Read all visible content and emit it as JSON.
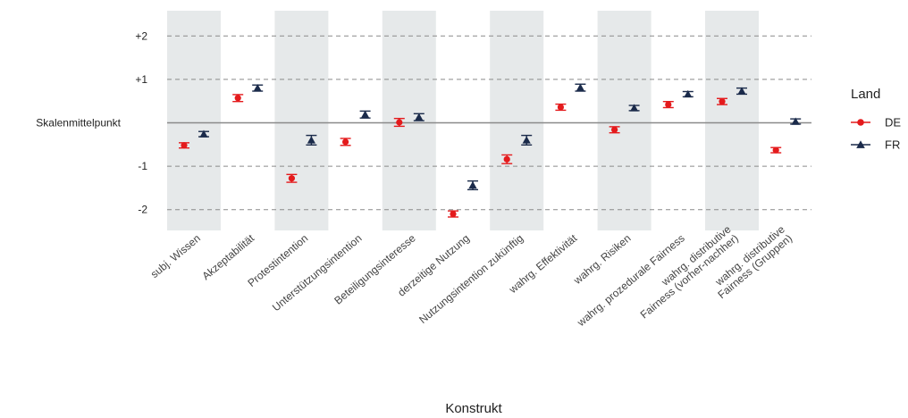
{
  "chart_data": {
    "type": "scatter",
    "xlabel": "Konstrukt",
    "ylabel": "",
    "ylim": [
      -2.5,
      2.0
    ],
    "y_ticks": [
      {
        "value": 2,
        "label": "+2"
      },
      {
        "value": 1,
        "label": "+1"
      },
      {
        "value": 0,
        "label": "Skalenmittelpunkt"
      },
      {
        "value": -1,
        "label": "-1"
      },
      {
        "value": -2,
        "label": "-2"
      }
    ],
    "categories": [
      [
        "subj. Wissen"
      ],
      [
        "Akzeptabilität"
      ],
      [
        "Protestintention"
      ],
      [
        "Unterstützungsintention"
      ],
      [
        "Beteiligungsinteresse"
      ],
      [
        "derzeitige Nutzung"
      ],
      [
        "Nutzungsintention zukünftig"
      ],
      [
        "wahrg. Effektivität"
      ],
      [
        "wahrg. Risiken"
      ],
      [
        "wahrg. prozedurale Fairness"
      ],
      [
        "wahrg. distributive",
        "Fairness (vorher-nachher)"
      ],
      [
        "wahrg. distributive",
        "Fairness (Gruppen)"
      ]
    ],
    "shaded_bands": [
      0,
      2,
      4,
      6,
      8,
      10
    ],
    "legend": {
      "title": "Land",
      "position": "right"
    },
    "series": [
      {
        "name": "DE",
        "color": "#e41a1c",
        "marker": "circle",
        "values": [
          -0.52,
          0.57,
          -1.28,
          -0.44,
          0.01,
          -2.1,
          -0.84,
          0.36,
          -0.16,
          0.42,
          0.49,
          -0.63
        ],
        "error": [
          0.06,
          0.08,
          0.09,
          0.08,
          0.09,
          0.07,
          0.1,
          0.07,
          0.07,
          0.07,
          0.07,
          0.06
        ]
      },
      {
        "name": "FR",
        "color": "#1a2a4a",
        "marker": "triangle",
        "values": [
          -0.26,
          0.8,
          -0.4,
          0.19,
          0.13,
          -1.44,
          -0.4,
          0.81,
          0.34,
          0.66,
          0.73,
          0.03
        ],
        "error": [
          0.06,
          0.07,
          0.11,
          0.08,
          0.08,
          0.1,
          0.11,
          0.08,
          0.06,
          0.06,
          0.07,
          0.06
        ]
      }
    ]
  }
}
